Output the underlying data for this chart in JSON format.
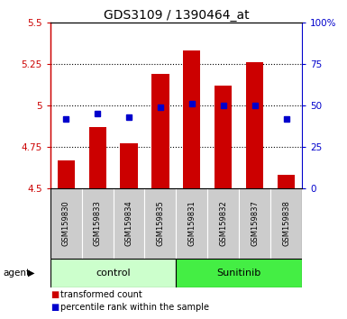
{
  "title": "GDS3109 / 1390464_at",
  "samples": [
    "GSM159830",
    "GSM159833",
    "GSM159834",
    "GSM159835",
    "GSM159831",
    "GSM159832",
    "GSM159837",
    "GSM159838"
  ],
  "bar_values": [
    4.67,
    4.87,
    4.77,
    5.19,
    5.33,
    5.12,
    5.26,
    4.58
  ],
  "percentile_values": [
    4.92,
    4.95,
    4.93,
    4.99,
    5.01,
    5.0,
    5.0,
    4.92
  ],
  "bar_color": "#cc0000",
  "blue_color": "#0000cc",
  "bar_baseline": 4.5,
  "ylim_left": [
    4.5,
    5.5
  ],
  "ylim_right": [
    0,
    100
  ],
  "yticks_left": [
    4.5,
    4.75,
    5.0,
    5.25,
    5.5
  ],
  "yticks_right": [
    0,
    25,
    50,
    75,
    100
  ],
  "ytick_labels_left": [
    "4.5",
    "4.75",
    "5",
    "5.25",
    "5.5"
  ],
  "ytick_labels_right": [
    "0",
    "25",
    "50",
    "75",
    "100%"
  ],
  "grid_lines": [
    4.75,
    5.0,
    5.25
  ],
  "group_control_label": "control",
  "group_sunitinib_label": "Sunitinib",
  "control_bg": "#ccffcc",
  "sunitinib_bg": "#44ee44",
  "agent_label": "agent",
  "legend_red_label": "transformed count",
  "legend_blue_label": "percentile rank within the sample",
  "bar_width": 0.55,
  "label_gray": "#cccccc",
  "n_control": 4,
  "n_sunitinib": 4
}
